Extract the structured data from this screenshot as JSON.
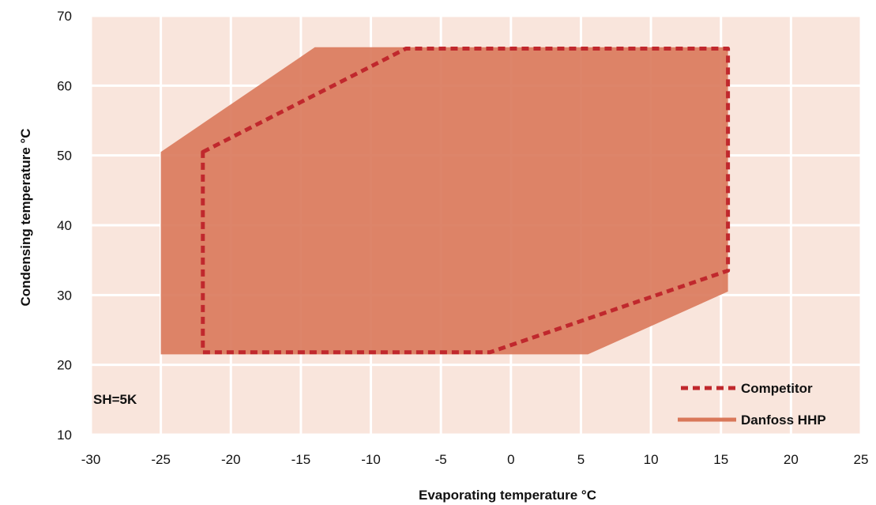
{
  "chart_data": {
    "type": "area",
    "xlabel": "Evaporating temperature °C",
    "ylabel": "Condensing temperature °C",
    "xlim": [
      -30,
      25
    ],
    "ylim": [
      10,
      70
    ],
    "xticks": [
      -30,
      -25,
      -20,
      -15,
      -10,
      -5,
      0,
      5,
      10,
      15,
      20,
      25
    ],
    "yticks": [
      10,
      20,
      30,
      40,
      50,
      60,
      70
    ],
    "grid": true,
    "legend_position": "bottom-right",
    "annotation": "SH=5K",
    "series": [
      {
        "name": "Danfoss HHP",
        "style": "filled-envelope",
        "color": "#d9785a",
        "points": [
          [
            -25,
            50.5
          ],
          [
            -14,
            65.5
          ],
          [
            15.5,
            65.5
          ],
          [
            15.5,
            30.5
          ],
          [
            5.5,
            21.5
          ],
          [
            -25,
            21.5
          ]
        ]
      },
      {
        "name": "Competitor",
        "style": "dashed-outline",
        "color": "#c0282d",
        "points": [
          [
            -22,
            50.5
          ],
          [
            -7.5,
            65.3
          ],
          [
            15.5,
            65.3
          ],
          [
            15.5,
            33.5
          ],
          [
            -1.5,
            21.8
          ],
          [
            -22,
            21.8
          ]
        ]
      }
    ]
  },
  "colors": {
    "plot_background": "#f9e5dc",
    "gridline": "#ffffff"
  }
}
